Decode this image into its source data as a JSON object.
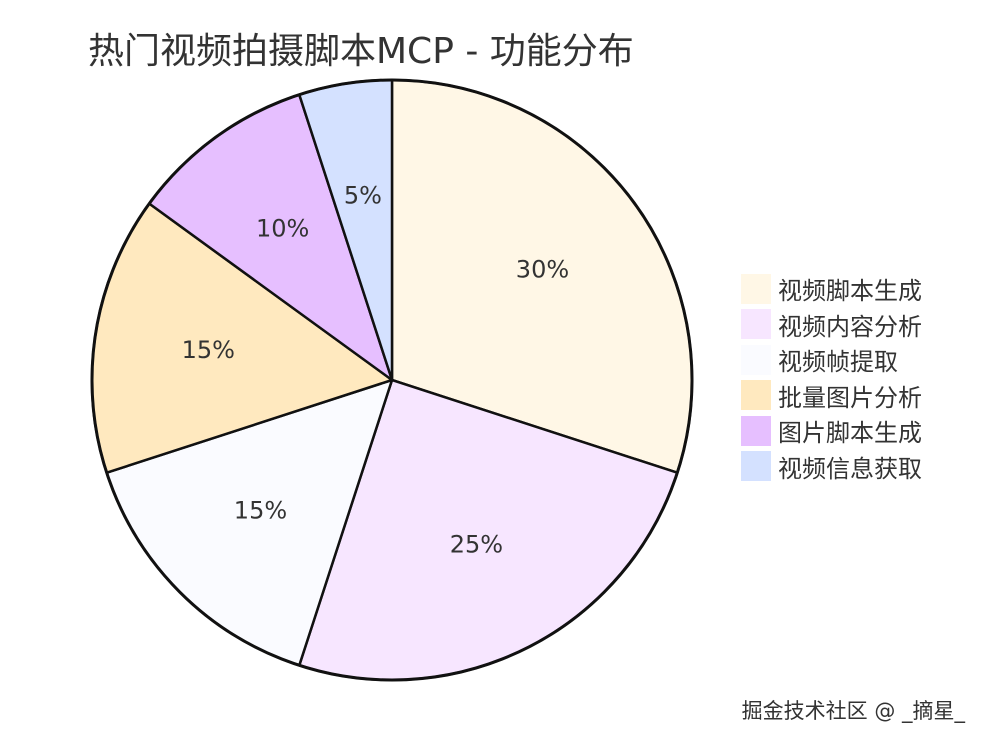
{
  "chart_data": {
    "type": "pie",
    "title": "热门视频拍摄脚本MCP - 功能分布",
    "slices": [
      {
        "label": "视频脚本生成",
        "value": 30,
        "color": "#fff7e6"
      },
      {
        "label": "视频内容分析",
        "value": 25,
        "color": "#f7e6ff"
      },
      {
        "label": "视频帧提取",
        "value": 15,
        "color": "#fafbff"
      },
      {
        "label": "批量图片分析",
        "value": 15,
        "color": "#ffe9bf"
      },
      {
        "label": "图片脚本生成",
        "value": 10,
        "color": "#e6bfff"
      },
      {
        "label": "视频信息获取",
        "value": 5,
        "color": "#d4e1ff"
      }
    ],
    "value_suffix": "%",
    "legend_position": "right",
    "stroke_color": "#111111"
  },
  "watermark": "掘金技术社区 @ _摘星_"
}
